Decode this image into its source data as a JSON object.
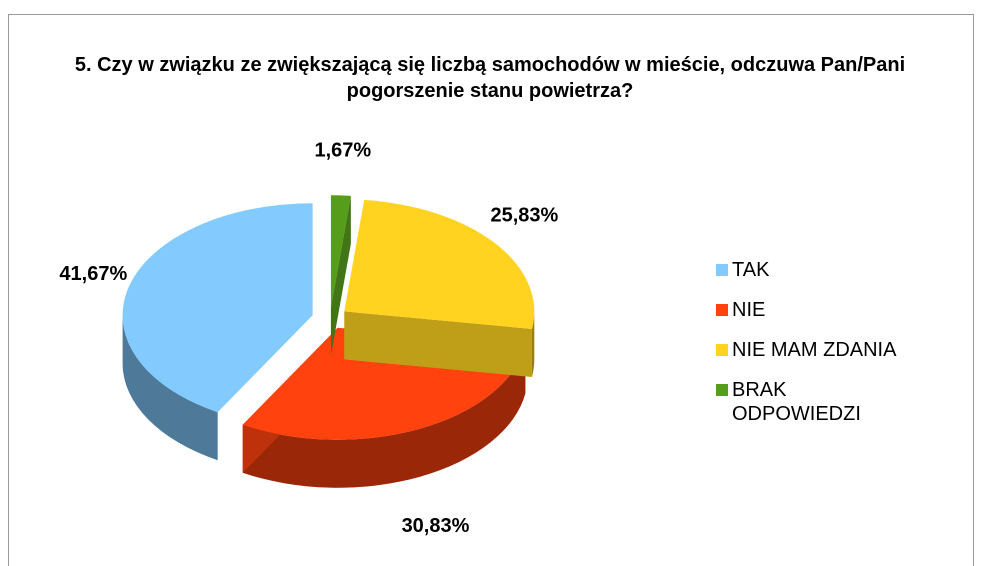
{
  "chart_data": {
    "type": "pie",
    "title": "5. Czy w związku ze zwiększającą się liczbą samochodów w mieście, odczuwa Pan/Pani pogorszenie stanu powietrza?",
    "categories": [
      "TAK",
      "NIE",
      "NIE MAM ZDANIA",
      "BRAK ODPOWIEDZI"
    ],
    "values": [
      41.67,
      30.83,
      25.83,
      1.67
    ],
    "value_labels": [
      "41,67%",
      "30,83%",
      "25,83%",
      "1,67%"
    ],
    "colors": [
      "#83caff",
      "#ff420e",
      "#ffd320",
      "#579d1c"
    ],
    "legend": "right"
  }
}
